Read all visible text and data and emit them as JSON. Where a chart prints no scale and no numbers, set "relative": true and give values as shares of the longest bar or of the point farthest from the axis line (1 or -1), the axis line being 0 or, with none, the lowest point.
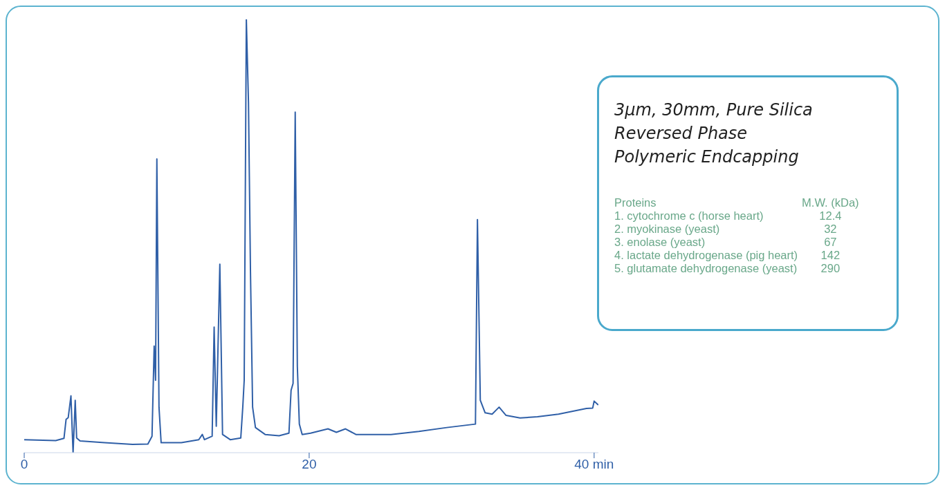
{
  "chart_data": {
    "type": "line",
    "relative": true,
    "x": [
      0,
      2.21,
      2.79,
      2.94,
      3.09,
      3.28,
      3.38,
      3.43,
      3.58,
      3.68,
      3.92,
      5.64,
      7.6,
      8.68,
      8.97,
      9.12,
      9.22,
      9.31,
      9.46,
      9.61,
      11.03,
      12.25,
      12.5,
      12.65,
      13.19,
      13.33,
      13.48,
      13.73,
      13.92,
      14.46,
      15.2,
      15.34,
      15.44,
      15.59,
      15.74,
      15.88,
      16.03,
      16.23,
      16.91,
      17.89,
      18.58,
      18.73,
      18.87,
      19.02,
      19.17,
      19.31,
      19.51,
      20.1,
      21.32,
      21.91,
      22.55,
      23.28,
      25.74,
      27.7,
      29.66,
      31.67,
      31.81,
      32.01,
      32.35,
      32.84,
      33.33,
      33.82,
      34.8,
      36.03,
      37.5,
      39.46,
      39.9,
      40,
      40.29
    ],
    "series": [
      {
        "color": "#2f5fa7",
        "values": [
          0.03,
          0.028,
          0.033,
          0.077,
          0.081,
          0.131,
          0.042,
          0,
          0.121,
          0.034,
          0.027,
          0.023,
          0.019,
          0.02,
          0.038,
          0.246,
          0.167,
          0.678,
          0.105,
          0.023,
          0.023,
          0.03,
          0.042,
          0.03,
          0.038,
          0.29,
          0.061,
          0.435,
          0.042,
          0.03,
          0.034,
          0.105,
          0.167,
          1,
          0.809,
          0.418,
          0.105,
          0.058,
          0.042,
          0.039,
          0.045,
          0.144,
          0.16,
          0.786,
          0.199,
          0.066,
          0.042,
          0.045,
          0.055,
          0.047,
          0.055,
          0.042,
          0.042,
          0.049,
          0.058,
          0.066,
          0.538,
          0.121,
          0.092,
          0.089,
          0.105,
          0.086,
          0.08,
          0.083,
          0.089,
          0.102,
          0.103,
          0.119,
          0.11
        ]
      }
    ],
    "xlim": [
      0,
      40.3
    ],
    "xticks": [
      0,
      20,
      {
        "value": 40,
        "label": "40 min"
      }
    ],
    "grid": false,
    "legend": false,
    "annotations": [
      "3µm, 30mm, Pure Silica",
      "Reversed Phase",
      "Polymeric Endcapping",
      "Proteins",
      "M.W. (kDa)",
      "1. cytochrome c (horse heart)",
      "12.4",
      "2. myokinase (yeast)",
      "32",
      "3. enolase (yeast)",
      "67",
      "4. lactate dehydrogenase (pig heart)",
      "142",
      "5. glutamate dehydrogenase (yeast)",
      "290"
    ]
  }
}
